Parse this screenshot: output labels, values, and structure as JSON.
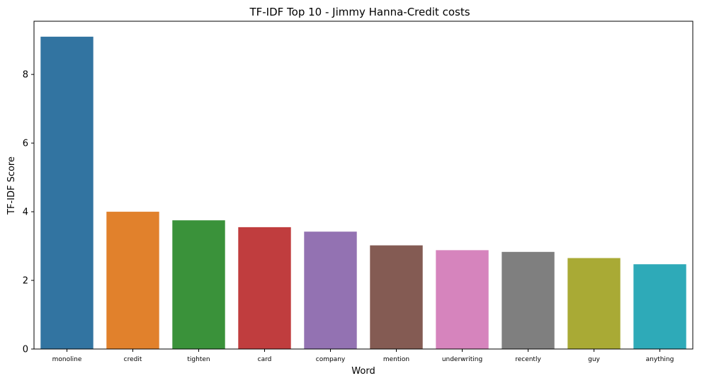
{
  "chart_data": {
    "type": "bar",
    "title": "TF-IDF Top 10 - Jimmy Hanna-Credit costs",
    "xlabel": "Word",
    "ylabel": "TF-IDF Score",
    "categories": [
      "monoline",
      "credit",
      "tighten",
      "card",
      "company",
      "mention",
      "underwriting",
      "recently",
      "guy",
      "anything"
    ],
    "values": [
      9.1,
      4.0,
      3.75,
      3.55,
      3.42,
      3.02,
      2.88,
      2.83,
      2.65,
      2.47
    ],
    "colors": [
      "#3274a1",
      "#e1812c",
      "#3a923a",
      "#c03d3e",
      "#9372b2",
      "#845b53",
      "#d684bd",
      "#7f7f7f",
      "#a9aa35",
      "#2eaab8"
    ],
    "ylim": [
      0,
      9.55
    ],
    "yticks": [
      0,
      2,
      4,
      6,
      8
    ],
    "grid": false,
    "legend": "none"
  }
}
